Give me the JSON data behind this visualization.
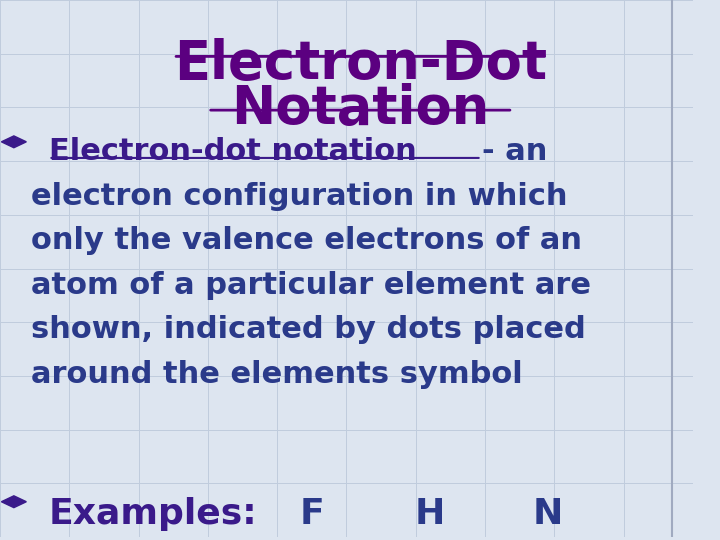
{
  "background_color": "#dde5f0",
  "grid_color": "#c0ccdd",
  "title_line1": "Electron-Dot",
  "title_line2": "Notation",
  "title_color": "#5b0080",
  "bullet_color": "#3a1a8a",
  "bullet1_underlined": "Electron-dot notation",
  "bullet2_label": "Examples:",
  "bullet2_elements": [
    "F",
    "H",
    "N"
  ],
  "body_color": "#2a3a8a",
  "diamond_color": "#3a1a8a",
  "title_fontsize": 38,
  "body_fontsize": 22,
  "examples_fontsize": 26,
  "right_border_color": "#a0aac0",
  "remaining_lines": [
    "electron configuration in which",
    "only the valence electrons of an",
    "atom of a particular element are",
    "shown, indicated by dots placed",
    "around the elements symbol"
  ]
}
